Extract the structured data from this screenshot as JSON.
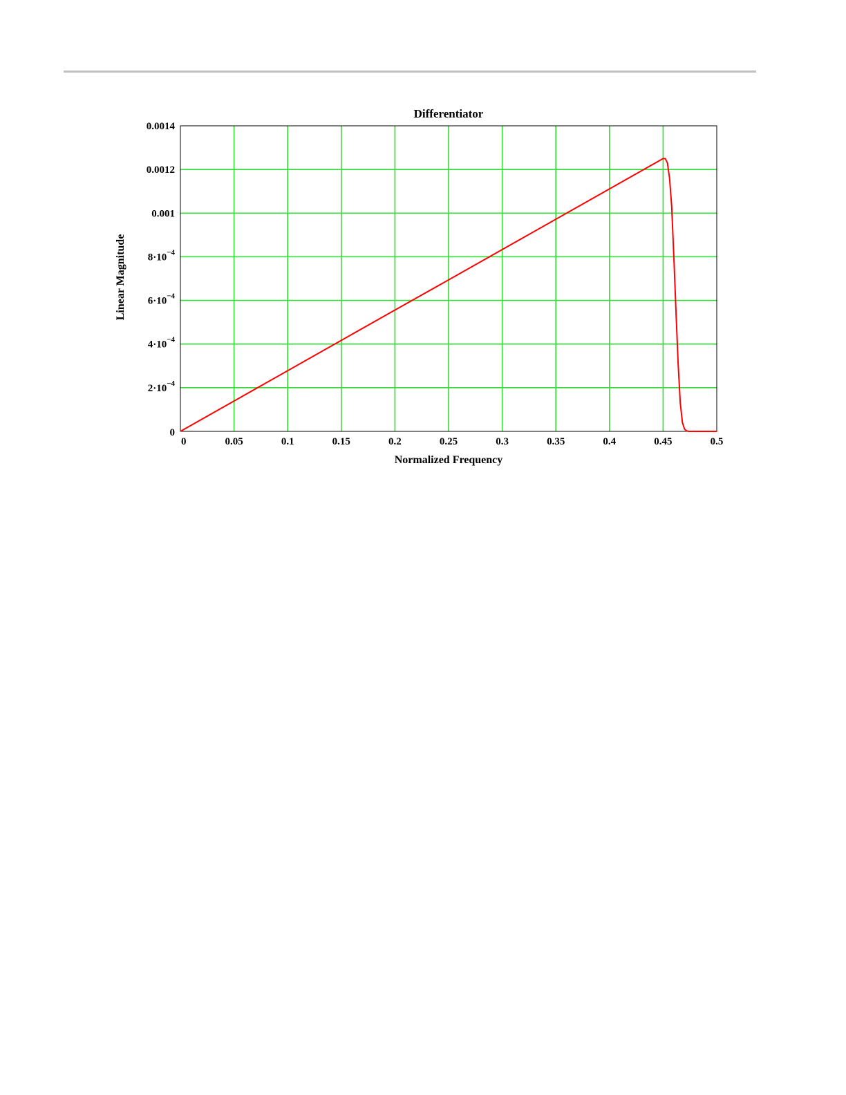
{
  "chart_data": {
    "type": "line",
    "title": "Differentiator",
    "xlabel": "Normalized Frequency",
    "ylabel": "Linear Magnitude",
    "xlim": [
      0,
      0.5
    ],
    "ylim": [
      0,
      0.0014
    ],
    "grid": true,
    "x_ticks": [
      {
        "value": 0,
        "label": "0"
      },
      {
        "value": 0.05,
        "label": "0.05"
      },
      {
        "value": 0.1,
        "label": "0.1"
      },
      {
        "value": 0.15,
        "label": "0.15"
      },
      {
        "value": 0.2,
        "label": "0.2"
      },
      {
        "value": 0.25,
        "label": "0.25"
      },
      {
        "value": 0.3,
        "label": "0.3"
      },
      {
        "value": 0.35,
        "label": "0.35"
      },
      {
        "value": 0.4,
        "label": "0.4"
      },
      {
        "value": 0.45,
        "label": "0.45"
      },
      {
        "value": 0.5,
        "label": "0.5"
      }
    ],
    "y_ticks": [
      {
        "value": 0,
        "label": "0",
        "mantissa": "",
        "exponent": ""
      },
      {
        "value": 0.0002,
        "label": "",
        "mantissa": "2·10",
        "exponent": "−4"
      },
      {
        "value": 0.0004,
        "label": "",
        "mantissa": "4·10",
        "exponent": "−4"
      },
      {
        "value": 0.0006,
        "label": "",
        "mantissa": "6·10",
        "exponent": "−4"
      },
      {
        "value": 0.0008,
        "label": "",
        "mantissa": "8·10",
        "exponent": "−4"
      },
      {
        "value": 0.001,
        "label": "0.001",
        "mantissa": "",
        "exponent": ""
      },
      {
        "value": 0.0012,
        "label": "0.0012",
        "mantissa": "",
        "exponent": ""
      },
      {
        "value": 0.0014,
        "label": "0.0014",
        "mantissa": "",
        "exponent": ""
      }
    ],
    "series": [
      {
        "color": "#ff0000",
        "x": [
          0,
          0.05,
          0.1,
          0.15,
          0.2,
          0.25,
          0.3,
          0.35,
          0.4,
          0.445,
          0.45,
          0.452,
          0.454,
          0.456,
          0.458,
          0.46,
          0.462,
          0.464,
          0.466,
          0.468,
          0.47,
          0.472,
          0.474,
          0.476,
          0.48,
          0.49,
          0.5
        ],
        "y": [
          0,
          0.000139,
          0.000278,
          0.000417,
          0.000556,
          0.000694,
          0.000833,
          0.000972,
          0.001111,
          0.001236,
          0.00125,
          0.00125,
          0.00123,
          0.00116,
          0.00103,
          0.0008,
          0.00055,
          0.00031,
          0.00013,
          4e-05,
          1e-05,
          2e-06,
          0,
          0,
          0,
          0,
          0
        ]
      }
    ]
  },
  "colors": {
    "grid": "#33dd33",
    "axis": "#000000",
    "line": "#ff0000"
  }
}
